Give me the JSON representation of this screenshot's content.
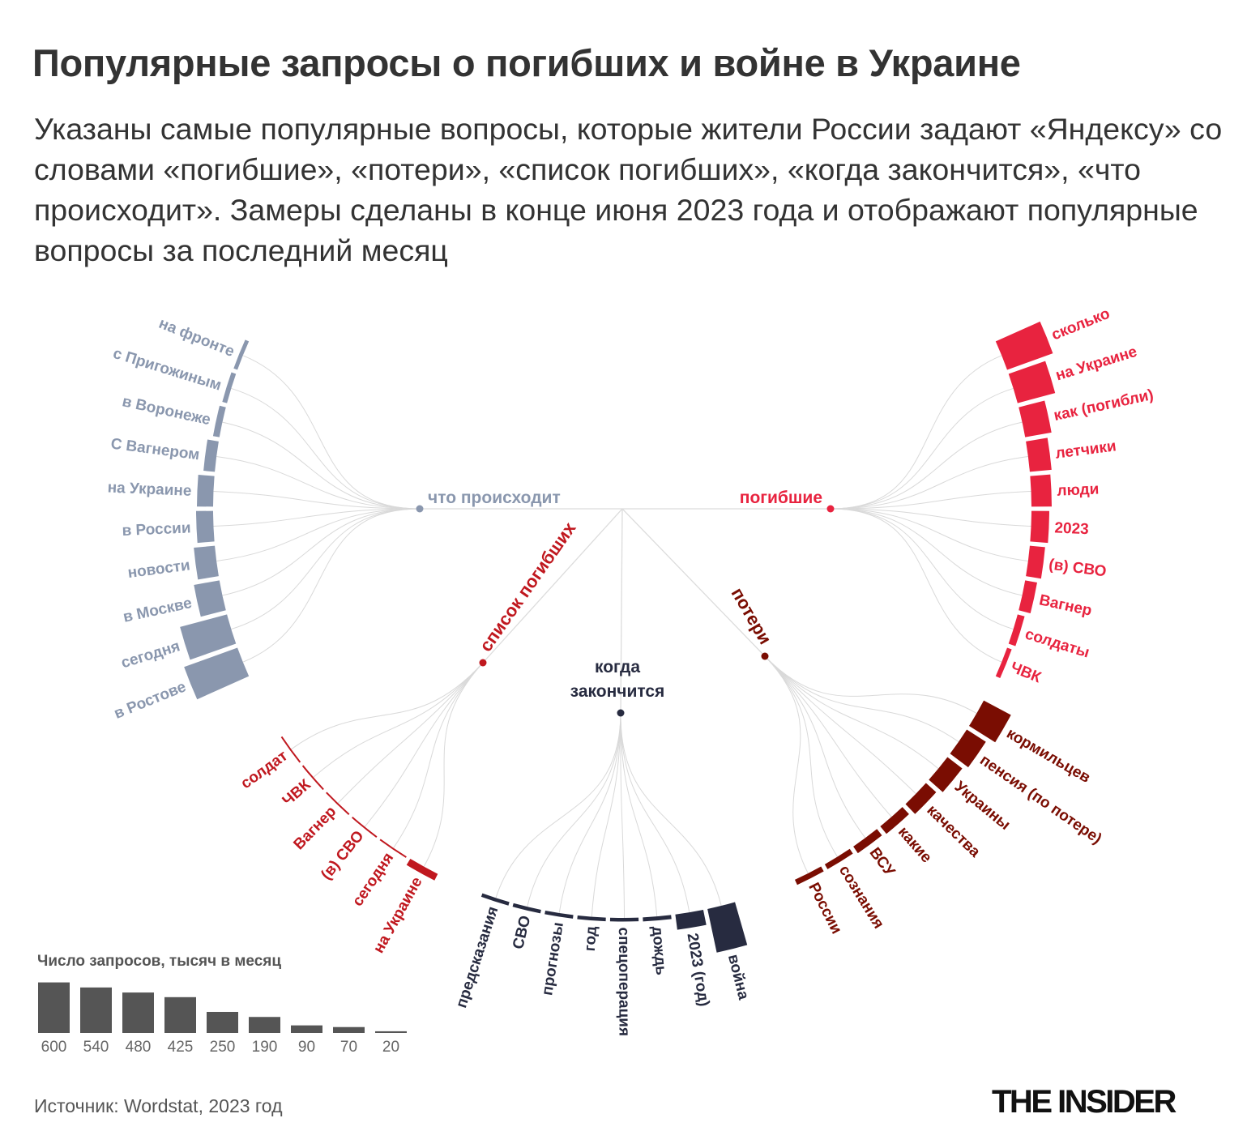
{
  "title": "Популярные запросы о погибших и войне в Украине",
  "subtitle": "Указаны самые популярные вопросы, которые жители России задают «Яндексу» со словами «погибшие», «потери», «список погибших», «когда закончится», «что происходит». Замеры сделаны в конце июня 2023 года и отображают популярные вопросы за последний месяц",
  "source": "Источник: Wordstat, 2023 год",
  "logo": "THE INSIDER",
  "chart_data": {
    "type": "radial-bar-tree",
    "unit": "тысяч запросов в месяц",
    "groups": [
      {
        "name": "что происходит",
        "color": "#8a97ae",
        "items": [
          {
            "label": "на фронте",
            "value": 50
          },
          {
            "label": "с Пригожиным",
            "value": 60
          },
          {
            "label": "в Воронеже",
            "value": 80
          },
          {
            "label": "С Вагнером",
            "value": 140
          },
          {
            "label": "на Украине",
            "value": 200
          },
          {
            "label": "в России",
            "value": 210
          },
          {
            "label": "новости",
            "value": 260
          },
          {
            "label": "в Москве",
            "value": 320
          },
          {
            "label": "сегодня",
            "value": 600
          },
          {
            "label": "в Ростове",
            "value": 700
          }
        ]
      },
      {
        "name": "погибшие",
        "color": "#e8233f",
        "items": [
          {
            "label": "сколько",
            "value": 600
          },
          {
            "label": "на Украине",
            "value": 480
          },
          {
            "label": "как (погибли)",
            "value": 330
          },
          {
            "label": "летчики",
            "value": 270
          },
          {
            "label": "люди",
            "value": 250
          },
          {
            "label": "2023",
            "value": 220
          },
          {
            "label": "(в) СВО",
            "value": 190
          },
          {
            "label": "Вагнер",
            "value": 150
          },
          {
            "label": "солдаты",
            "value": 90
          },
          {
            "label": "ЧВК",
            "value": 60
          }
        ]
      },
      {
        "name": "список погибших",
        "color": "#c0181f",
        "items": [
          {
            "label": "солдат",
            "value": 20
          },
          {
            "label": "ЧВК",
            "value": 20
          },
          {
            "label": "Вагнер",
            "value": 20
          },
          {
            "label": "(в) СВО",
            "value": 20
          },
          {
            "label": "сегодня",
            "value": 20
          },
          {
            "label": "на Украине",
            "value": 90
          }
        ]
      },
      {
        "name": "когда закончится",
        "color": "#272b40",
        "items": [
          {
            "label": "предсказания",
            "value": 45
          },
          {
            "label": "СВО",
            "value": 45
          },
          {
            "label": "прогнозы",
            "value": 45
          },
          {
            "label": "год",
            "value": 45
          },
          {
            "label": "спецоперация",
            "value": 45
          },
          {
            "label": "дождь",
            "value": 50
          },
          {
            "label": "2023 (год)",
            "value": 190
          },
          {
            "label": "война",
            "value": 550
          }
        ]
      },
      {
        "name": "потери",
        "color": "#7a0d02",
        "items": [
          {
            "label": "кормильцев",
            "value": 380
          },
          {
            "label": "пенсия (по потере)",
            "value": 280
          },
          {
            "label": "Украины",
            "value": 230
          },
          {
            "label": "качества",
            "value": 170
          },
          {
            "label": "какие",
            "value": 120
          },
          {
            "label": "ВСУ",
            "value": 100
          },
          {
            "label": "сознания",
            "value": 70
          },
          {
            "label": "России",
            "value": 70
          }
        ]
      }
    ],
    "legend": {
      "title": "Число запросов, тысяч в месяц",
      "color": "#555555",
      "values": [
        600,
        540,
        480,
        425,
        250,
        190,
        90,
        70,
        20
      ]
    }
  }
}
